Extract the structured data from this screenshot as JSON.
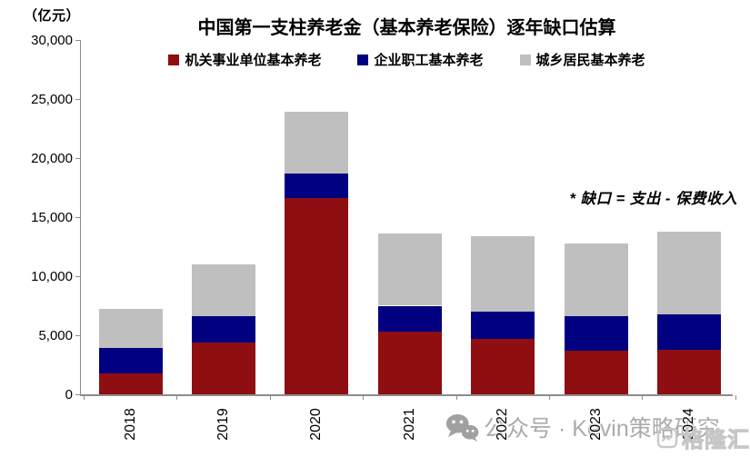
{
  "header": {
    "unit_label": "（亿元）",
    "title": "中国第一支柱养老金（基本养老保险）逐年缺口估算"
  },
  "annotation": "* 缺口 = 支出 - 保费收入",
  "watermark": {
    "icon": "wechat-icon",
    "text": "公众号 · Kevin策略研究"
  },
  "logo": {
    "icon": "gelonghui-icon",
    "text": "格隆汇"
  },
  "chart_data": {
    "type": "bar",
    "stacked": true,
    "title": "中国第一支柱养老金（基本养老保险）逐年缺口估算",
    "unit": "亿元",
    "categories": [
      "2018",
      "2019",
      "2020",
      "2021",
      "2022",
      "2023",
      "2024"
    ],
    "series": [
      {
        "name": "机关事业单位基本养老",
        "color": "#8f0e11",
        "values": [
          1800,
          4400,
          16600,
          5300,
          4700,
          3700,
          3800
        ]
      },
      {
        "name": "企业职工基本养老",
        "color": "#000080",
        "values": [
          2100,
          2200,
          2100,
          2200,
          2300,
          2900,
          3000
        ]
      },
      {
        "name": "城乡居民基本养老",
        "color": "#bfbfbf",
        "values": [
          3300,
          4400,
          5200,
          6100,
          6400,
          6200,
          7000
        ]
      }
    ],
    "totals": [
      7200,
      11000,
      23900,
      13600,
      13400,
      12800,
      13800
    ],
    "ylim": [
      0,
      30000
    ],
    "y_ticks": [
      0,
      5000,
      10000,
      15000,
      20000,
      25000,
      30000
    ],
    "y_tick_labels": [
      "0",
      "5,000",
      "10,000",
      "15,000",
      "20,000",
      "25,000",
      "30,000"
    ],
    "xlabel": "",
    "ylabel": "（亿元）",
    "grid": false,
    "legend_position": "top-center"
  }
}
